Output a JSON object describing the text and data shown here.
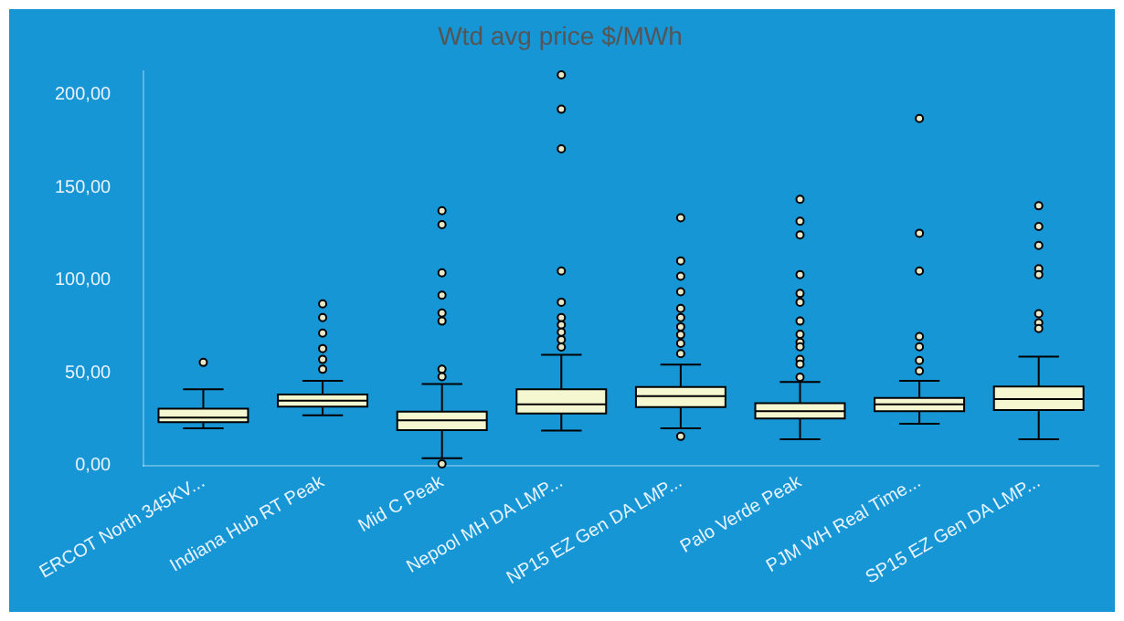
{
  "chart_data": {
    "type": "box",
    "title": "Wtd avg price $/MWh",
    "categories": [
      "ERCOT North 345KV...",
      "Indiana Hub RT Peak",
      "Mid C Peak",
      "Nepool MH DA LMP...",
      "NP15 EZ Gen DA LMP...",
      "Palo Verde Peak",
      "PJM WH Real Time...",
      "SP15 EZ Gen DA LMP..."
    ],
    "boxes": [
      {
        "low": 20.1,
        "q1": 23.5,
        "median": 26,
        "q3": 30.7,
        "high": 41.2,
        "outliers": [
          55.7
        ]
      },
      {
        "low": 27.2,
        "q1": 31.9,
        "median": 35,
        "q3": 38.4,
        "high": 45.8,
        "outliers": [
          87.3,
          79.9,
          71.5,
          63.2,
          57.3,
          52
        ]
      },
      {
        "low": 4,
        "q1": 19.2,
        "median": 24.5,
        "q3": 29.1,
        "high": 44,
        "outliers": [
          137.5,
          130,
          104,
          92,
          82.4,
          78,
          52,
          48,
          1
        ]
      },
      {
        "low": 18.9,
        "q1": 28.2,
        "median": 33.1,
        "q3": 41.2,
        "high": 59.8,
        "outliers": [
          210.8,
          192.3,
          170.9,
          105,
          88.2,
          79.9,
          76,
          72,
          68,
          64
        ]
      },
      {
        "low": 20.1,
        "q1": 31.6,
        "median": 37.5,
        "q3": 42.4,
        "high": 54.5,
        "outliers": [
          133.7,
          110.5,
          102.2,
          93.8,
          84.8,
          79.9,
          74.9,
          70.6,
          66,
          60.4,
          15.8
        ]
      },
      {
        "low": 14.2,
        "q1": 25.4,
        "median": 29.4,
        "q3": 33.7,
        "high": 45.2,
        "outliers": [
          143.7,
          131.9,
          124.5,
          103.1,
          92.9,
          88.2,
          78,
          70.9,
          66.6,
          64.1,
          57.3,
          54.8,
          47.7
        ]
      },
      {
        "low": 22.6,
        "q1": 29.4,
        "median": 33.1,
        "q3": 36.5,
        "high": 45.8,
        "outliers": [
          187.3,
          125.4,
          105,
          69.7,
          64.1,
          56.7,
          51.1
        ]
      },
      {
        "low": 14.2,
        "q1": 30,
        "median": 35.9,
        "q3": 42.7,
        "high": 58.8,
        "outliers": [
          140.2,
          129,
          118.8,
          106.2,
          103.1,
          82,
          77.1,
          74
        ]
      }
    ],
    "color": "#f4f7cf",
    "ylim": [
      0,
      213
    ],
    "yticks": [
      {
        "value": 0,
        "label": "0,00"
      },
      {
        "value": 50,
        "label": "50,00"
      },
      {
        "value": 100,
        "label": "100,00"
      },
      {
        "value": 150,
        "label": "150,00"
      },
      {
        "value": 200,
        "label": "200,00"
      }
    ],
    "grid": false,
    "legend": false,
    "marker": "circle"
  }
}
